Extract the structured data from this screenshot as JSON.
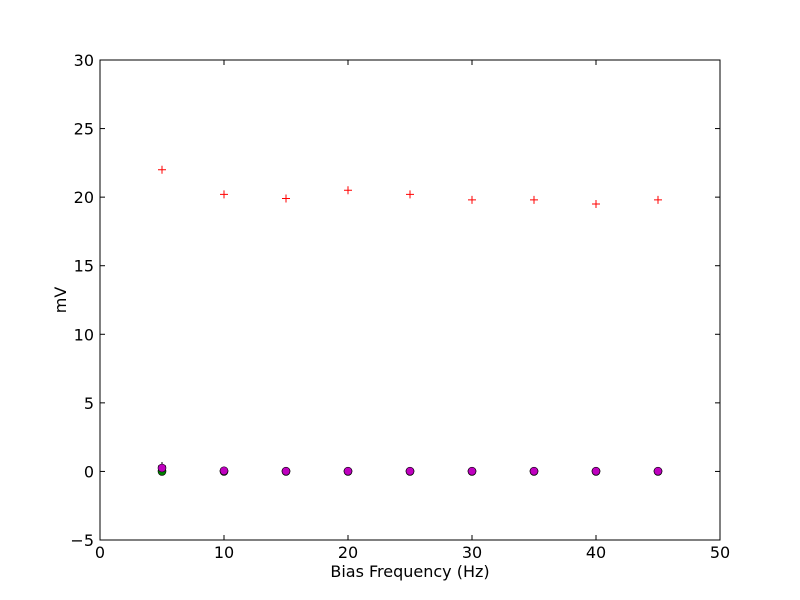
{
  "chart_data": {
    "type": "scatter",
    "title": "",
    "xlabel": "Bias Frequency (Hz)",
    "ylabel": "mV",
    "xlim": [
      0,
      50
    ],
    "ylim": [
      -5,
      30
    ],
    "xticks": [
      0,
      10,
      20,
      30,
      40,
      50
    ],
    "yticks": [
      -5,
      0,
      5,
      10,
      15,
      20,
      25,
      30
    ],
    "xtick_labels": [
      "0",
      "10",
      "20",
      "30",
      "40",
      "50"
    ],
    "ytick_labels": [
      "−5",
      "0",
      "5",
      "10",
      "15",
      "20",
      "25",
      "30"
    ],
    "grid": false,
    "legend": "none",
    "series": [
      {
        "marker": "plus",
        "color": "#ff0000",
        "x": [
          5,
          10,
          15,
          20,
          25,
          30,
          35,
          40,
          45
        ],
        "y": [
          22.0,
          20.2,
          19.9,
          20.5,
          20.2,
          19.8,
          19.8,
          19.5,
          19.8
        ]
      },
      {
        "marker": "plus",
        "color": "#000000",
        "x": [
          5
        ],
        "y": [
          0.4
        ]
      },
      {
        "marker": "circle",
        "color": "#008000",
        "x": [
          5,
          10,
          15,
          20,
          25,
          30,
          35,
          40,
          45
        ],
        "y": [
          0.0,
          0.0,
          0.0,
          0.0,
          0.0,
          0.0,
          0.0,
          0.0,
          0.0
        ]
      },
      {
        "marker": "circle",
        "color": "#bf00bf",
        "x": [
          5,
          10,
          15,
          20,
          25,
          30,
          35,
          40,
          45
        ],
        "y": [
          0.25,
          0.05,
          0.02,
          0.02,
          0.02,
          0.02,
          0.02,
          0.02,
          0.02
        ]
      }
    ]
  }
}
